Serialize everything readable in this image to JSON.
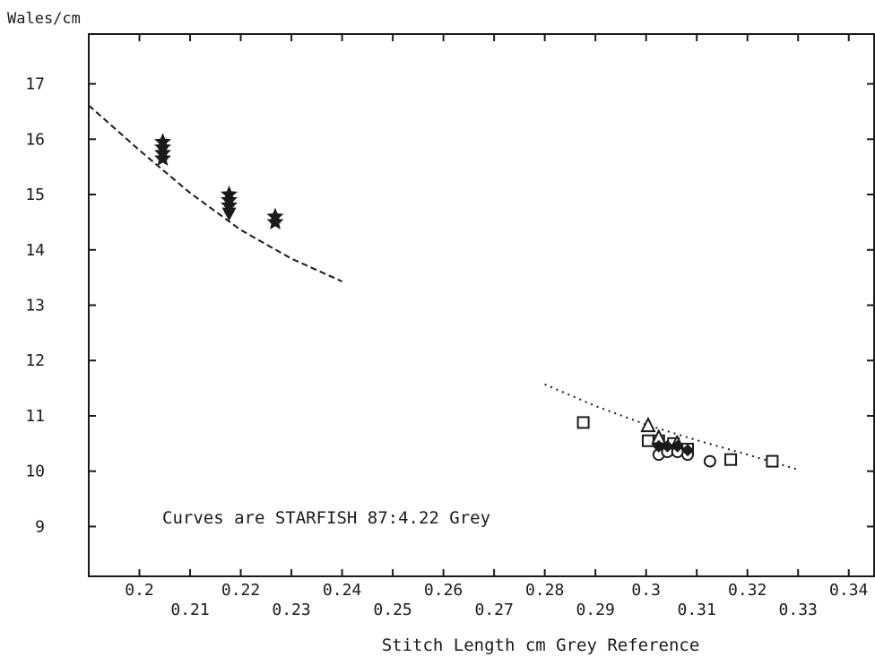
{
  "chart_data": {
    "type": "scatter",
    "ylabel": "Wales/cm",
    "xlabel": "Stitch Length cm Grey Reference",
    "annotation": "Curves are STARFISH 87:4.22 Grey",
    "xlim": [
      0.19,
      0.345
    ],
    "ylim": [
      8.1,
      17.9
    ],
    "x_ticks_upper": [
      "0.2",
      "0.22",
      "0.24",
      "0.26",
      "0.28",
      "0.3",
      "0.32",
      "0.34"
    ],
    "x_ticks_lower": [
      "0.21",
      "0.23",
      "0.25",
      "0.27",
      "0.29",
      "0.31",
      "0.33"
    ],
    "y_ticks": [
      "9",
      "10",
      "11",
      "12",
      "13",
      "14",
      "15",
      "16",
      "17"
    ],
    "grid": false,
    "series": [
      {
        "marker": "star",
        "points": [
          [
            0.2046,
            15.95
          ],
          [
            0.2046,
            15.85
          ],
          [
            0.2046,
            15.75
          ],
          [
            0.2046,
            15.65
          ],
          [
            0.2177,
            15.0
          ],
          [
            0.2177,
            14.9
          ],
          [
            0.2177,
            14.8
          ],
          [
            0.2268,
            14.6
          ],
          [
            0.2268,
            14.5
          ]
        ]
      },
      {
        "marker": "triangle-down",
        "points": [
          [
            0.2177,
            14.65
          ]
        ]
      },
      {
        "marker": "square",
        "points": [
          [
            0.2876,
            10.88
          ],
          [
            0.3004,
            10.55
          ],
          [
            0.3025,
            10.55
          ],
          [
            0.3054,
            10.5
          ],
          [
            0.3082,
            10.4
          ],
          [
            0.3167,
            10.21
          ],
          [
            0.3249,
            10.18
          ]
        ]
      },
      {
        "marker": "triangle-up",
        "points": [
          [
            0.3004,
            10.82
          ],
          [
            0.3025,
            10.6
          ],
          [
            0.3061,
            10.5
          ]
        ]
      },
      {
        "marker": "circle",
        "points": [
          [
            0.3025,
            10.3
          ],
          [
            0.3042,
            10.35
          ],
          [
            0.3062,
            10.35
          ],
          [
            0.3082,
            10.3
          ],
          [
            0.3126,
            10.18
          ]
        ]
      },
      {
        "marker": "diamond",
        "points": [
          [
            0.3025,
            10.45
          ],
          [
            0.3042,
            10.45
          ],
          [
            0.3062,
            10.45
          ],
          [
            0.3082,
            10.38
          ]
        ]
      }
    ],
    "curves": [
      {
        "style": "dashed",
        "x": [
          0.19,
          0.2,
          0.21,
          0.22,
          0.23,
          0.24
        ],
        "y": [
          16.61,
          15.8,
          15.03,
          14.36,
          13.84,
          13.43
        ]
      },
      {
        "style": "dotted",
        "x": [
          0.28,
          0.29,
          0.3,
          0.31,
          0.32,
          0.33
        ],
        "y": [
          11.57,
          11.18,
          10.84,
          10.56,
          10.3,
          10.03
        ]
      }
    ],
    "colors": {
      "ink": "#1a1a1a",
      "background": "#ffffff"
    }
  }
}
